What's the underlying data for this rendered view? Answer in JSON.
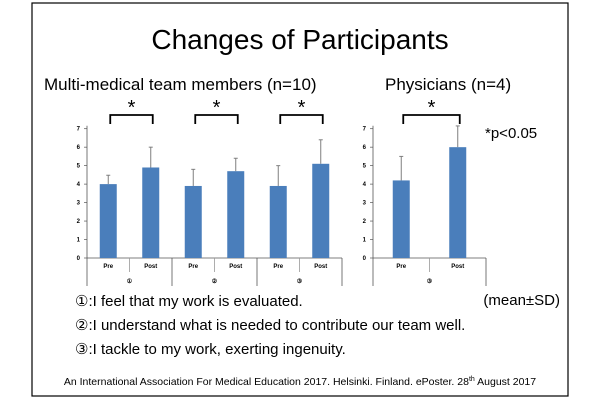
{
  "title": "Changes of Participants",
  "footer": "An International Association For Medical Education 2017. Helsinki. Finland. ePoster. 28th August 2017",
  "footer_parts": {
    "a": "An International Association For Medical Education 2017. Helsinki. Finland. ePoster. 28",
    "sup": "th",
    "b": " August 2017"
  },
  "significance_note": "*p<0.05",
  "mean_sd_note": "(mean±SD)",
  "legend": [
    "①:I feel that my work is evaluated.",
    "②:I understand what is needed to contribute our team well.",
    "③:I tackle to my work, exerting ingenuity."
  ],
  "colors": {
    "bar": "#4a7ebb",
    "error": "#7f7f7f"
  },
  "chart_data": [
    {
      "type": "bar",
      "title": "Multi-medical team members (n=10)",
      "groups": [
        "①",
        "②",
        "③"
      ],
      "categories": [
        "Pre",
        "Post"
      ],
      "ylim": [
        0,
        7
      ],
      "yticks": [
        "0",
        "1",
        "2",
        "3",
        "4",
        "5",
        "6",
        "7"
      ],
      "values": [
        [
          4.0,
          4.9
        ],
        [
          3.9,
          4.7
        ],
        [
          3.9,
          5.1
        ]
      ],
      "sd": [
        [
          0.48,
          1.1
        ],
        [
          0.9,
          0.7
        ],
        [
          1.1,
          1.3
        ]
      ],
      "significance": [
        "*",
        "*",
        "*"
      ]
    },
    {
      "type": "bar",
      "title": "Physicians (n=4)",
      "groups": [
        "③"
      ],
      "categories": [
        "Pre",
        "Post"
      ],
      "ylim": [
        0,
        7
      ],
      "yticks": [
        "0",
        "1",
        "2",
        "3",
        "4",
        "5",
        "6",
        "7"
      ],
      "values": [
        [
          4.2,
          6.0
        ]
      ],
      "sd": [
        [
          1.3,
          1.15
        ]
      ],
      "significance": [
        "*"
      ]
    }
  ]
}
